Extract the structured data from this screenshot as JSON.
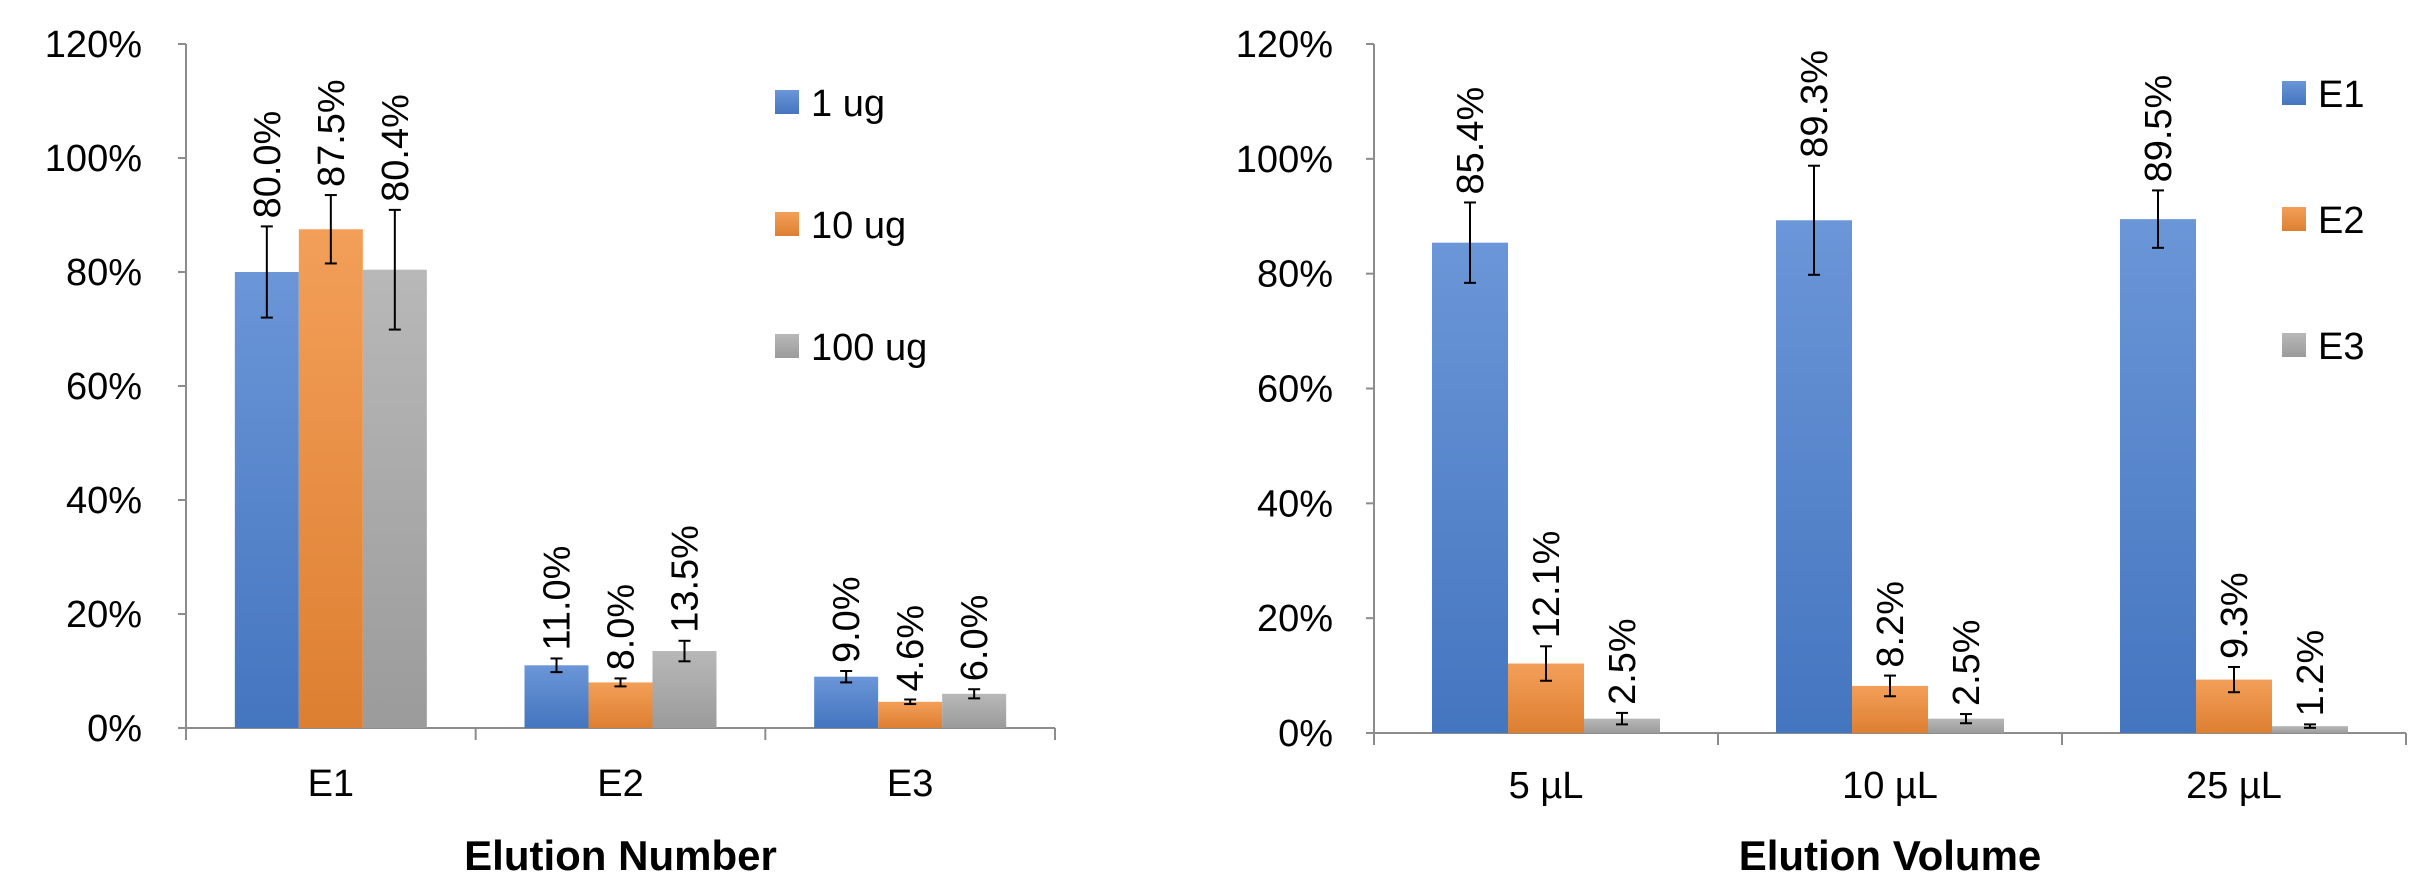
{
  "chart_data": [
    {
      "type": "bar",
      "title": "",
      "xlabel": "Elution Number",
      "ylabel": "",
      "ylim": [
        0,
        120
      ],
      "yticks": [
        "0%",
        "20%",
        "40%",
        "60%",
        "80%",
        "100%",
        "120%"
      ],
      "categories": [
        "E1",
        "E2",
        "E3"
      ],
      "legend_position": "top-right",
      "series": [
        {
          "name": "1 ug",
          "color": "#4a7fd0",
          "values": [
            80.0,
            11.0,
            9.0
          ],
          "errors": [
            8.0,
            1.2,
            1.0
          ],
          "labels": [
            "80.0%",
            "11.0%",
            "9.0%"
          ]
        },
        {
          "name": "10 ug",
          "color": "#f08a35",
          "values": [
            87.5,
            8.0,
            4.6
          ],
          "errors": [
            6.0,
            0.7,
            0.4
          ],
          "labels": [
            "87.5%",
            "8.0%",
            "4.6%"
          ]
        },
        {
          "name": "100 ug",
          "color": "#a9a9a9",
          "values": [
            80.4,
            13.5,
            6.0
          ],
          "errors": [
            10.5,
            1.8,
            0.8
          ],
          "labels": [
            "80.4%",
            "13.5%",
            "6.0%"
          ]
        }
      ]
    },
    {
      "type": "bar",
      "title": "",
      "xlabel": "Elution Volume",
      "ylabel": "",
      "ylim": [
        0,
        120
      ],
      "yticks": [
        "0%",
        "20%",
        "40%",
        "60%",
        "80%",
        "100%",
        "120%"
      ],
      "categories": [
        "5 µL",
        "10 µL",
        "25 µL"
      ],
      "legend_position": "right",
      "series": [
        {
          "name": "E1",
          "color": "#4a7fd0",
          "values": [
            85.4,
            89.3,
            89.5
          ],
          "errors": [
            7.0,
            9.5,
            5.0
          ],
          "labels": [
            "85.4%",
            "89.3%",
            "89.5%"
          ]
        },
        {
          "name": "E2",
          "color": "#f08a35",
          "values": [
            12.1,
            8.2,
            9.3
          ],
          "errors": [
            3.0,
            1.8,
            2.2
          ],
          "labels": [
            "12.1%",
            "8.2%",
            "9.3%"
          ]
        },
        {
          "name": "E3",
          "color": "#a9a9a9",
          "values": [
            2.5,
            2.5,
            1.2
          ],
          "errors": [
            1.0,
            0.8,
            0.3
          ],
          "labels": [
            "2.5%",
            "2.5%",
            "1.2%"
          ]
        }
      ]
    }
  ]
}
